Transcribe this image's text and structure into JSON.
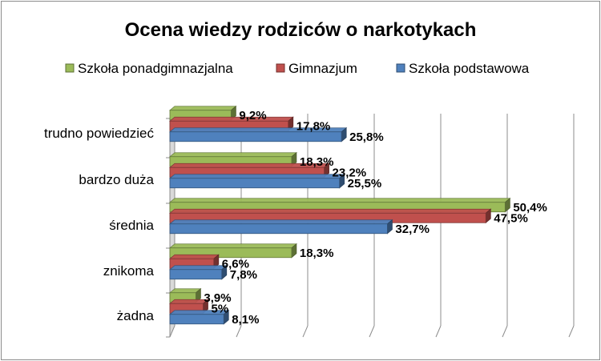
{
  "chart_data": {
    "type": "bar",
    "orientation": "horizontal",
    "title": "Ocena wiedzy rodziców o narkotykach",
    "categories": [
      "trudno powiedzieć",
      "bardzo duża",
      "średnia",
      "znikoma",
      "żadna"
    ],
    "series": [
      {
        "name": "Szkoła ponadgimnazjalna",
        "color": "#9bbb59",
        "values": [
          9.2,
          18.3,
          50.4,
          18.3,
          3.9
        ],
        "labels": [
          "9,2%",
          "18,3%",
          "50,4%",
          "18,3%",
          "3,9%"
        ]
      },
      {
        "name": "Gimnazjum",
        "color": "#c0504d",
        "values": [
          17.8,
          23.2,
          47.5,
          6.6,
          5
        ],
        "labels": [
          "17,8%",
          "23,2%",
          "47,5%",
          "6,6%",
          "5%"
        ]
      },
      {
        "name": "Szkoła podstawowa",
        "color": "#4f81bd",
        "values": [
          25.8,
          25.5,
          32.7,
          7.8,
          8.1
        ],
        "labels": [
          "25,8%",
          "25,5%",
          "32,7%",
          "7,8%",
          "8,1%"
        ]
      }
    ],
    "legend_order": [
      "Szkoła ponadgimnazjalna",
      "Gimnazjum",
      "Szkoła podstawowa"
    ],
    "xlim": [
      0,
      60
    ],
    "grid": true,
    "legend_position": "top"
  }
}
